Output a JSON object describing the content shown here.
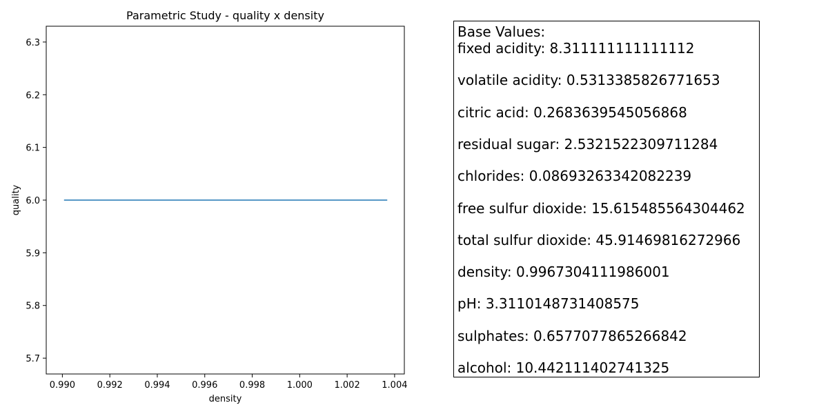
{
  "chart_data": {
    "type": "line",
    "title": "Parametric Study - quality x density",
    "xlabel": "density",
    "ylabel": "quality",
    "xlim": [
      0.98932,
      1.00441
    ],
    "ylim": [
      5.67,
      6.33
    ],
    "xticks": [
      0.99,
      0.992,
      0.994,
      0.996,
      0.998,
      1.0,
      1.002,
      1.004
    ],
    "xtick_labels": [
      "0.990",
      "0.992",
      "0.994",
      "0.996",
      "0.998",
      "1.000",
      "1.002",
      "1.004"
    ],
    "yticks": [
      5.7,
      5.8,
      5.9,
      6.0,
      6.1,
      6.2,
      6.3
    ],
    "ytick_labels": [
      "5.7",
      "5.8",
      "5.9",
      "6.0",
      "6.1",
      "6.2",
      "6.3"
    ],
    "grid": false,
    "series": [
      {
        "color": "#1f77b4",
        "x": [
          0.99007,
          1.00369
        ],
        "y": [
          6.0,
          6.0
        ]
      }
    ]
  },
  "base_values": {
    "title": "Base Values:",
    "lines": [
      "fixed acidity: 8.311111111111112",
      "volatile acidity: 0.5313385826771653",
      "citric acid: 0.2683639545056868",
      "residual sugar: 2.5321522309711284",
      "chlorides: 0.08693263342082239",
      "free sulfur dioxide: 15.615485564304462",
      "total sulfur dioxide: 45.91469816272966",
      "density: 0.9967304111986001",
      "pH: 3.3110148731408575",
      "sulphates: 0.6577077865266842",
      "alcohol: 10.442111402741325"
    ]
  }
}
